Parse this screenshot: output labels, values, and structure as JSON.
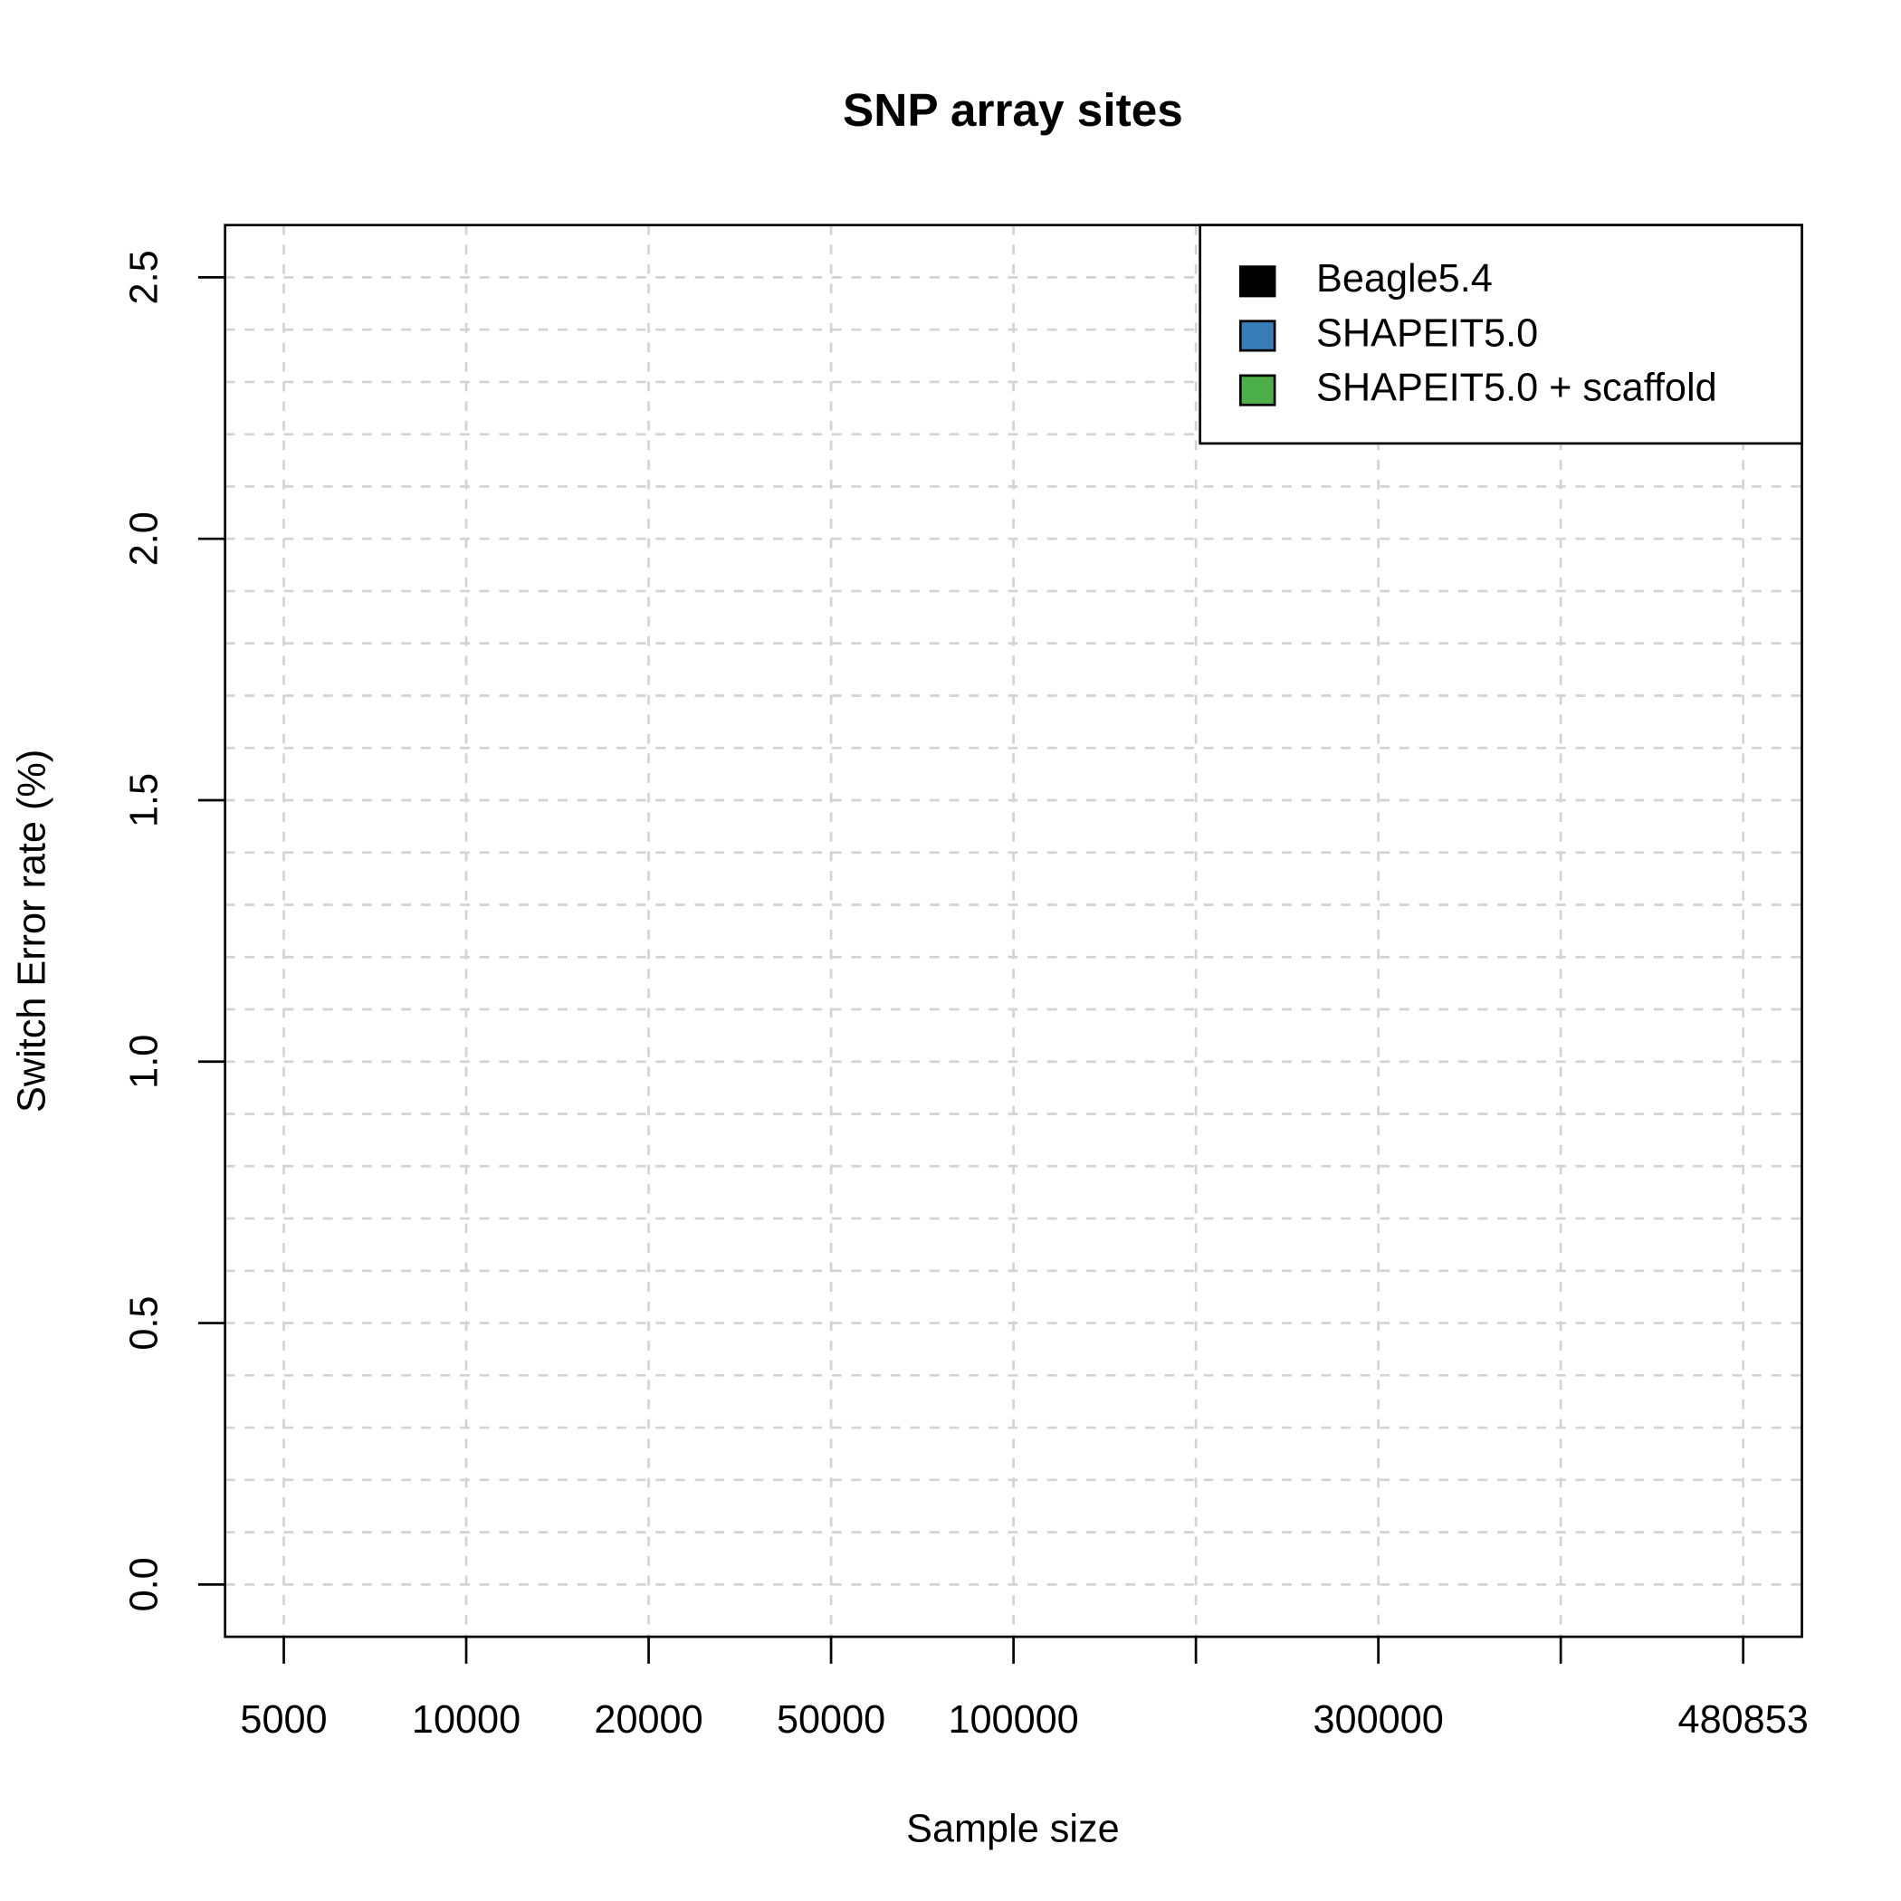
{
  "chart_data": {
    "type": "bar",
    "title": "SNP array sites",
    "x_label": "Sample size",
    "y_label": "Switch Error rate (%)",
    "categories": [
      "5000",
      "10000",
      "20000",
      "50000",
      "100000",
      null,
      "300000",
      null,
      "480853"
    ],
    "series": [
      {
        "name": "Beagle5.4",
        "color": "#000000"
      },
      {
        "name": "SHAPEIT5.0",
        "color": "#377eb8"
      },
      {
        "name": "SHAPEIT5.0 + scaffold",
        "color": "#4daf4a"
      }
    ],
    "ylim": [
      -0.1,
      2.6
    ],
    "yticks": [
      {
        "value": 0,
        "label": "0.0"
      },
      0.5,
      {
        "value": 1,
        "label": "1.0"
      },
      1.5,
      {
        "value": 2,
        "label": "2.0"
      },
      2.5
    ],
    "ygrid": [
      0,
      0.1,
      0.2,
      0.3,
      0.4,
      0.5,
      0.6,
      0.7,
      0.8,
      0.9,
      1.0,
      1.1,
      1.2,
      1.3,
      1.4,
      1.5,
      1.6,
      1.7,
      1.8,
      1.9,
      2.0,
      2.1,
      2.2,
      2.3,
      2.4,
      2.5
    ],
    "grid": true,
    "legend": "top-right"
  }
}
